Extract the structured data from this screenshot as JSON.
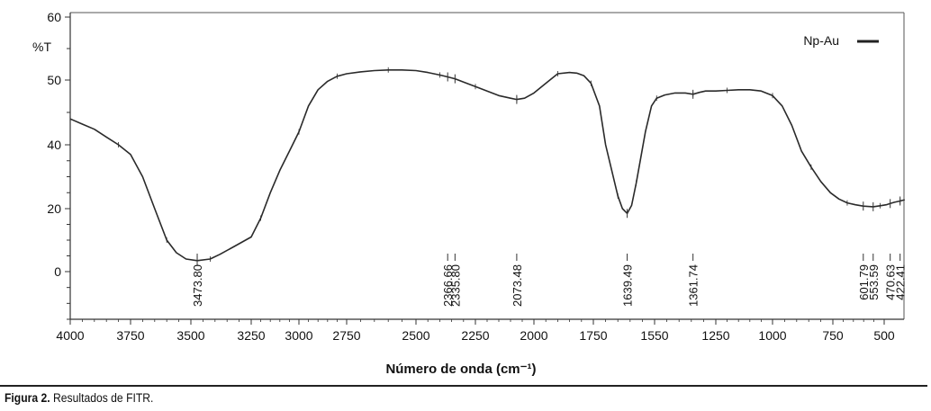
{
  "chart_data": {
    "type": "line",
    "ylabel": "%T",
    "xlabel": "Número de onda (cm⁻¹)",
    "xlim": [
      4000,
      400
    ],
    "ylim": [
      -15,
      60
    ],
    "x_ticks": [
      4000,
      3750,
      3500,
      3250,
      3000,
      2750,
      2500,
      2250,
      2000,
      1750,
      1550,
      1250,
      1000,
      750,
      500
    ],
    "y_ticks": [
      0,
      20,
      40,
      50,
      60
    ],
    "legend": {
      "position": "top-right",
      "label": "Np-Au"
    },
    "series": [
      {
        "name": "Np-Au",
        "color": "#2a2a2a",
        "points": [
          [
            4000,
            44.0
          ],
          [
            3950,
            43.2
          ],
          [
            3900,
            42.4
          ],
          [
            3850,
            41.2
          ],
          [
            3800,
            40.0
          ],
          [
            3750,
            37.0
          ],
          [
            3700,
            30.0
          ],
          [
            3650,
            20.0
          ],
          [
            3600,
            10.0
          ],
          [
            3560,
            6.0
          ],
          [
            3520,
            4.0
          ],
          [
            3473.8,
            3.5
          ],
          [
            3420,
            4.0
          ],
          [
            3380,
            5.5
          ],
          [
            3320,
            8.0
          ],
          [
            3250,
            11.0
          ],
          [
            3200,
            17.0
          ],
          [
            3150,
            25.0
          ],
          [
            3100,
            32.0
          ],
          [
            3050,
            38.0
          ],
          [
            3000,
            42.0
          ],
          [
            2950,
            46.0
          ],
          [
            2900,
            48.5
          ],
          [
            2850,
            49.8
          ],
          [
            2800,
            50.6
          ],
          [
            2750,
            51.0
          ],
          [
            2700,
            51.3
          ],
          [
            2650,
            51.5
          ],
          [
            2600,
            51.6
          ],
          [
            2550,
            51.6
          ],
          [
            2500,
            51.5
          ],
          [
            2450,
            51.2
          ],
          [
            2400,
            50.8
          ],
          [
            2366.66,
            50.5
          ],
          [
            2335.8,
            50.2
          ],
          [
            2300,
            49.7
          ],
          [
            2250,
            49.0
          ],
          [
            2200,
            48.3
          ],
          [
            2150,
            47.6
          ],
          [
            2100,
            47.2
          ],
          [
            2073.48,
            47.0
          ],
          [
            2040,
            47.2
          ],
          [
            2000,
            48.0
          ],
          [
            1950,
            49.5
          ],
          [
            1900,
            51.0
          ],
          [
            1850,
            51.2
          ],
          [
            1820,
            51.1
          ],
          [
            1790,
            50.7
          ],
          [
            1760,
            49.5
          ],
          [
            1730,
            46.0
          ],
          [
            1710,
            40.0
          ],
          [
            1690,
            32.0
          ],
          [
            1670,
            24.0
          ],
          [
            1655,
            20.0
          ],
          [
            1639.49,
            18.5
          ],
          [
            1625,
            21.0
          ],
          [
            1610,
            28.0
          ],
          [
            1595,
            36.0
          ],
          [
            1580,
            42.0
          ],
          [
            1560,
            46.0
          ],
          [
            1540,
            47.2
          ],
          [
            1500,
            47.7
          ],
          [
            1450,
            48.0
          ],
          [
            1400,
            48.0
          ],
          [
            1361.74,
            47.8
          ],
          [
            1330,
            48.1
          ],
          [
            1300,
            48.3
          ],
          [
            1250,
            48.3
          ],
          [
            1200,
            48.4
          ],
          [
            1150,
            48.5
          ],
          [
            1100,
            48.5
          ],
          [
            1050,
            48.3
          ],
          [
            1000,
            47.6
          ],
          [
            960,
            46.0
          ],
          [
            920,
            43.0
          ],
          [
            880,
            38.0
          ],
          [
            840,
            33.0
          ],
          [
            800,
            28.5
          ],
          [
            760,
            25.0
          ],
          [
            720,
            23.0
          ],
          [
            680,
            21.8
          ],
          [
            640,
            21.2
          ],
          [
            601.79,
            20.8
          ],
          [
            553.59,
            20.6
          ],
          [
            520,
            20.9
          ],
          [
            490,
            21.2
          ],
          [
            470.63,
            21.6
          ],
          [
            450,
            22.0
          ],
          [
            422.41,
            22.4
          ],
          [
            400,
            22.8
          ]
        ]
      }
    ],
    "peaks": [
      {
        "x": 3473.8,
        "label": "3473.80"
      },
      {
        "x": 2366.66,
        "label": "2366.66"
      },
      {
        "x": 2335.8,
        "label": "2335.80"
      },
      {
        "x": 2073.48,
        "label": "2073.48"
      },
      {
        "x": 1639.49,
        "label": "1639.49"
      },
      {
        "x": 1361.74,
        "label": "1361.74"
      },
      {
        "x": 601.79,
        "label": "601.79"
      },
      {
        "x": 553.59,
        "label": "553.59"
      },
      {
        "x": 470.63,
        "label": "470.63"
      },
      {
        "x": 422.41,
        "label": "422.41"
      }
    ]
  },
  "caption": {
    "prefix": "Figura 2.",
    "text": " Resultados de FITR."
  }
}
